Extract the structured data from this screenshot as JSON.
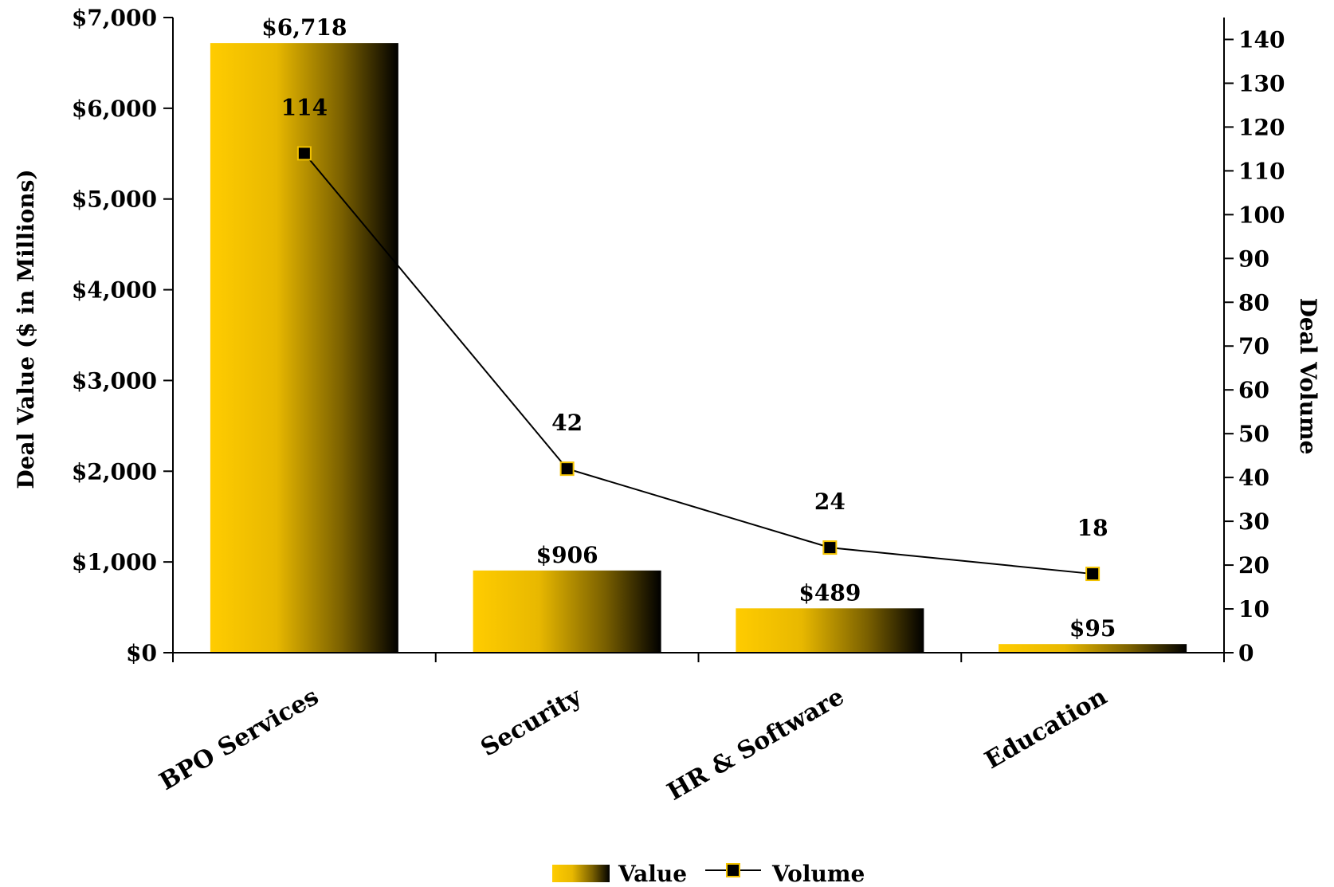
{
  "chart_data": {
    "type": "bar",
    "categories": [
      "BPO Services",
      "Security",
      "HR & Software",
      "Education"
    ],
    "series": [
      {
        "name": "Value",
        "type": "bar",
        "axis": "left",
        "values": [
          6718,
          906,
          489,
          95
        ],
        "labels": [
          "$6,718",
          "$906",
          "$489",
          "$95"
        ]
      },
      {
        "name": "Volume",
        "type": "line",
        "axis": "right",
        "values": [
          114,
          42,
          24,
          18
        ],
        "labels": [
          "114",
          "42",
          "24",
          "18"
        ]
      }
    ],
    "ylabel": "Deal Value ($ in Millions)",
    "y2label": "Deal Volume",
    "ylim": [
      0,
      7000
    ],
    "y2lim": [
      0,
      145
    ],
    "yticks": [
      0,
      1000,
      2000,
      3000,
      4000,
      5000,
      6000,
      7000
    ],
    "ytick_labels": [
      "$0",
      "$1,000",
      "$2,000",
      "$3,000",
      "$4,000",
      "$5,000",
      "$6,000",
      "$7,000"
    ],
    "y2ticks": [
      0,
      10,
      20,
      30,
      40,
      50,
      60,
      70,
      80,
      90,
      100,
      110,
      120,
      130,
      140
    ],
    "y2tick_labels": [
      "0",
      "10",
      "20",
      "30",
      "40",
      "50",
      "60",
      "70",
      "80",
      "90",
      "100",
      "110",
      "120",
      "130",
      "140"
    ],
    "grid": false,
    "legend": "bottom",
    "colors": {
      "bar_gradient_start": "#FFCC00",
      "bar_gradient_end": "#000000",
      "line": "#000000",
      "marker_fill": "#000000",
      "marker_stroke": "#F2C200"
    }
  }
}
